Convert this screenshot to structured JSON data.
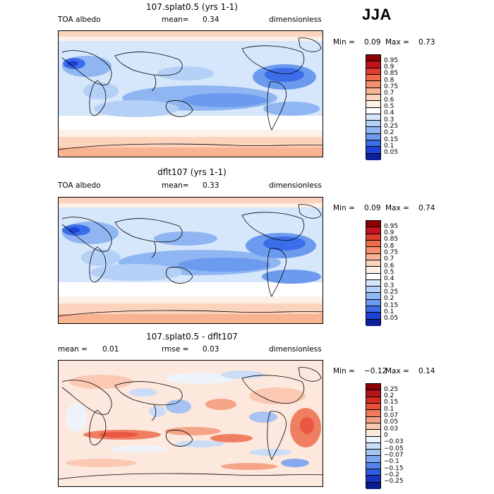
{
  "season": "JJA",
  "panels": [
    {
      "title": "107.splat0.5 (yrs 1-1)",
      "left_label": "TOA albedo",
      "mid_label": "mean=",
      "mid_value": "0.34",
      "right_label": "dimensionless",
      "min_label": "Min =",
      "min_value": "0.09",
      "max_label": "Max =",
      "max_value": "0.73",
      "levels": [
        "0.95",
        "0.9",
        "0.85",
        "0.8",
        "0.75",
        "0.7",
        "0.6",
        "0.5",
        "0.4",
        "0.3",
        "0.25",
        "0.2",
        "0.15",
        "0.1",
        "0.05"
      ],
      "colors": [
        "#8b0000",
        "#c1121f",
        "#e03b2f",
        "#ef6a48",
        "#f4906d",
        "#f8b393",
        "#fcd3bd",
        "#fdf0e7",
        "#ffffff",
        "#d6e6fb",
        "#b4d0f6",
        "#8fb6f2",
        "#6b9aee",
        "#3b6de8",
        "#1f42d6",
        "#0d1f9a"
      ]
    },
    {
      "title": "dflt107 (yrs 1-1)",
      "left_label": "TOA albedo",
      "mid_label": "mean=",
      "mid_value": "0.33",
      "right_label": "dimensionless",
      "min_label": "Min =",
      "min_value": "0.09",
      "max_label": "Max =",
      "max_value": "0.74",
      "levels": [
        "0.95",
        "0.9",
        "0.85",
        "0.8",
        "0.75",
        "0.7",
        "0.6",
        "0.5",
        "0.4",
        "0.3",
        "0.25",
        "0.2",
        "0.15",
        "0.1",
        "0.05"
      ],
      "colors": [
        "#8b0000",
        "#c1121f",
        "#e03b2f",
        "#ef6a48",
        "#f4906d",
        "#f8b393",
        "#fcd3bd",
        "#fdf0e7",
        "#ffffff",
        "#d6e6fb",
        "#b4d0f6",
        "#8fb6f2",
        "#6b9aee",
        "#3b6de8",
        "#1f42d6",
        "#0d1f9a"
      ]
    },
    {
      "title": "107.splat0.5 - dflt107",
      "left_label": "mean =",
      "left_value": "0.01",
      "mid_label": "rmse =",
      "mid_value": "0.03",
      "right_label": "dimensionless",
      "min_label": "Min =",
      "min_value": "−0.12",
      "max_label": "Max =",
      "max_value": "0.14",
      "levels": [
        "0.25",
        "0.2",
        "0.15",
        "0.1",
        "0.07",
        "0.05",
        "0.03",
        "0",
        "−0.03",
        "−0.05",
        "−0.07",
        "−0.1",
        "−0.15",
        "−0.2",
        "−0.25"
      ],
      "colors": [
        "#8b0000",
        "#b5121b",
        "#d62a22",
        "#e9503a",
        "#f07a5c",
        "#f6a184",
        "#fbc7b0",
        "#fde8dd",
        "#eef4fd",
        "#c9dcf8",
        "#a4c2f3",
        "#7ea6ef",
        "#5584ea",
        "#2e5ce2",
        "#1734c4",
        "#0a1a8a"
      ]
    }
  ]
}
